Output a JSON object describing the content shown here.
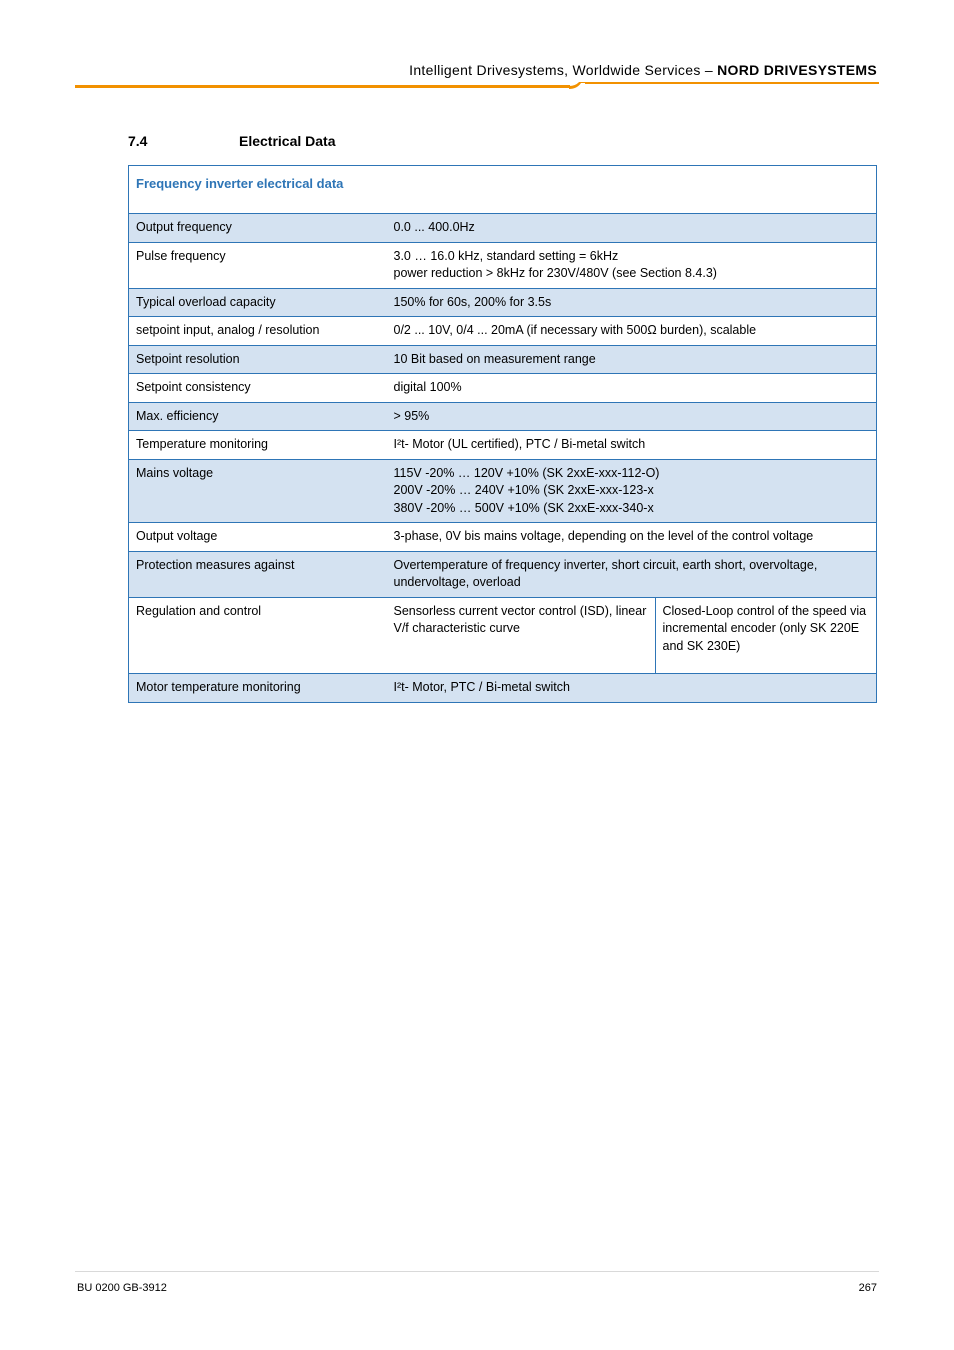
{
  "header": {
    "prefix": "Intelligent Drivesystems, Worldwide Services",
    "separator": " – ",
    "company": "NORD DRIVESYSTEMS"
  },
  "section": {
    "number": "7.4",
    "title": "Electrical Data"
  },
  "table": {
    "caption": "Frequency inverter electrical data",
    "rows": [
      {
        "bg": "blue",
        "label": "Output frequency",
        "value": "0.0 ... 400.0Hz"
      },
      {
        "bg": "white",
        "label": "Pulse frequency",
        "value": "3.0 … 16.0 kHz, standard setting = 6kHz\npower reduction > 8kHz for 230V/480V (see Section 8.4.3)"
      },
      {
        "bg": "blue",
        "label": "Typical overload capacity",
        "value": "150% for 60s, 200% for 3.5s"
      },
      {
        "bg": "white",
        "label": "setpoint input, analog / resolution",
        "value": "0/2 ... 10V, 0/4 ... 20mA (if necessary with 500Ω burden), scalable"
      },
      {
        "bg": "blue",
        "label": "Setpoint resolution",
        "value": "10 Bit based on measurement range"
      },
      {
        "bg": "white",
        "label": "Setpoint consistency",
        "value": "digital 100%"
      },
      {
        "bg": "blue",
        "label": "Max. efficiency",
        "value": "> 95%"
      },
      {
        "bg": "white",
        "label": "Temperature monitoring",
        "value": "I²t- Motor (UL certified), PTC / Bi-metal switch"
      },
      {
        "bg": "blue",
        "label": "Mains voltage",
        "value": "115V -20% … 120V +10% (SK 2xxE-xxx-112-O)\n200V -20% … 240V +10% (SK 2xxE-xxx-123-x\n380V -20% … 500V +10% (SK 2xxE-xxx-340-x"
      },
      {
        "bg": "white",
        "label": "Output voltage",
        "value": "3-phase, 0V bis mains voltage, depending on the level of the control voltage"
      },
      {
        "bg": "blue",
        "label": "Protection measures against",
        "value": "Overtemperature of frequency inverter, short circuit, earth short, overvoltage, undervoltage, overload"
      },
      {
        "bg": "white",
        "label": "Regulation and control",
        "value_a": "Sensorless current vector control (ISD), linear V/f characteristic curve",
        "value_b": "Closed-Loop control of the speed via incremental encoder (only SK 220E and SK 230E)"
      },
      {
        "bg": "blue",
        "label": "Motor temperature monitoring",
        "value": "I²t- Motor, PTC / Bi-metal switch"
      }
    ]
  },
  "footer": {
    "docref": "BU 0200 GB-3912",
    "page": "267"
  },
  "colors": {
    "accent_orange": "#f29100",
    "table_border": "#2e75b6",
    "row_blue": "#d4e2f1",
    "caption_text": "#2e75b6"
  }
}
